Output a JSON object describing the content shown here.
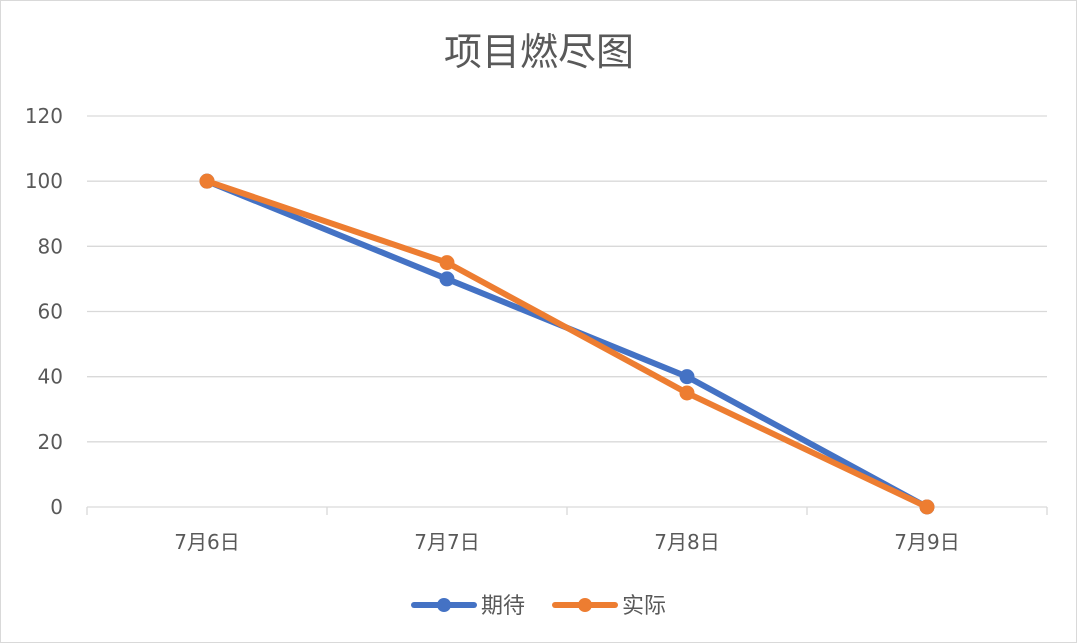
{
  "chart_data": {
    "type": "line",
    "title": "项目燃尽图",
    "categories": [
      "7月6日",
      "7月7日",
      "7月8日",
      "7月9日"
    ],
    "ylim": [
      0,
      120
    ],
    "yticks": [
      0,
      20,
      40,
      60,
      80,
      100,
      120
    ],
    "grid": true,
    "legend_position": "bottom",
    "series": [
      {
        "name": "期待",
        "values": [
          100,
          70,
          40,
          0
        ],
        "color": "#4472C4"
      },
      {
        "name": "实际",
        "values": [
          100,
          75,
          35,
          0
        ],
        "color": "#ED7D31"
      }
    ],
    "gridline_color": "#D9D9D9",
    "text_color": "#595959"
  }
}
